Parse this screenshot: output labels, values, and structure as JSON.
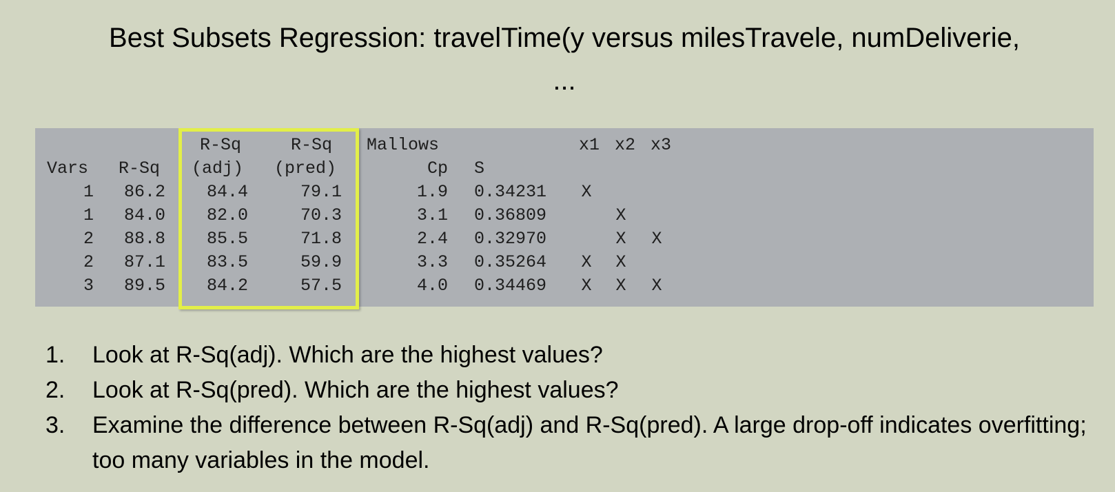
{
  "title": {
    "line1": "Best Subsets Regression: travelTime(y versus milesTravele, numDeliverie,",
    "line2": "..."
  },
  "output": {
    "headers_top": {
      "rsq_adj": "R-Sq",
      "rsq_pred": "R-Sq",
      "mallows": "Mallows",
      "x1": "x1",
      "x2": "x2",
      "x3": "x3"
    },
    "headers_bottom": {
      "vars": "Vars",
      "rsq": "R-Sq",
      "rsq_adj": "(adj)",
      "rsq_pred": "(pred)",
      "cp": "Cp",
      "s": "S"
    },
    "rows": [
      {
        "vars": "1",
        "rsq": "86.2",
        "rsq_adj": "84.4",
        "rsq_pred": "79.1",
        "cp": "1.9",
        "s": "0.34231",
        "x1": "X",
        "x2": "",
        "x3": ""
      },
      {
        "vars": "1",
        "rsq": "84.0",
        "rsq_adj": "82.0",
        "rsq_pred": "70.3",
        "cp": "3.1",
        "s": "0.36809",
        "x1": "",
        "x2": "X",
        "x3": ""
      },
      {
        "vars": "2",
        "rsq": "88.8",
        "rsq_adj": "85.5",
        "rsq_pred": "71.8",
        "cp": "2.4",
        "s": "0.32970",
        "x1": "",
        "x2": "X",
        "x3": "X"
      },
      {
        "vars": "2",
        "rsq": "87.1",
        "rsq_adj": "83.5",
        "rsq_pred": "59.9",
        "cp": "3.3",
        "s": "0.35264",
        "x1": "X",
        "x2": "X",
        "x3": ""
      },
      {
        "vars": "3",
        "rsq": "89.5",
        "rsq_adj": "84.2",
        "rsq_pred": "57.5",
        "cp": "4.0",
        "s": "0.34469",
        "x1": "X",
        "x2": "X",
        "x3": "X"
      }
    ]
  },
  "highlight_color": "#e3ef48",
  "questions": [
    {
      "num": "1.",
      "text": "Look at R-Sq(adj). Which are the highest values?"
    },
    {
      "num": "2.",
      "text": "Look at R-Sq(pred). Which are the highest values?"
    },
    {
      "num": "3.",
      "text": "Examine the difference between R-Sq(adj) and R-Sq(pred). A large drop-off indicates overfitting; too many variables in the model."
    }
  ]
}
